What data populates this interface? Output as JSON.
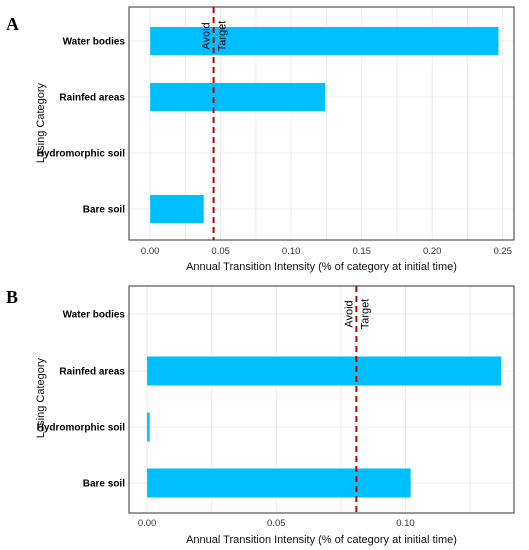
{
  "chart_data": [
    {
      "type": "bar",
      "orientation": "horizontal",
      "panel": "A",
      "categories": [
        "Water bodies",
        "Rainfed areas",
        "Hydromorphic soil",
        "Bare soil"
      ],
      "values": [
        0.247,
        0.124,
        0.0,
        0.038
      ],
      "xlabel": "Annual Transition Intensity (% of category at initial time)",
      "ylabel": "Losing Category",
      "xlim": [
        -0.015,
        0.258
      ],
      "xticks": [
        "0.00",
        "0.05",
        "0.10",
        "0.15",
        "0.20",
        "0.25"
      ],
      "tick_values": [
        0.0,
        0.05,
        0.1,
        0.15,
        0.2,
        0.25
      ],
      "reference_line": {
        "value": 0.045,
        "label_left": "Avoid",
        "label_right": "Target"
      },
      "grid": true,
      "bar_color": "#00bfff",
      "line_color": "#c00000"
    },
    {
      "type": "bar",
      "orientation": "horizontal",
      "panel": "B",
      "categories": [
        "Water bodies",
        "Rainfed areas",
        "Hydromorphic soil",
        "Bare soil"
      ],
      "values": [
        0.0,
        0.137,
        0.001,
        0.102
      ],
      "xlabel": "Annual Transition Intensity (% of category at initial time)",
      "ylabel": "Losing Category",
      "xlim": [
        -0.007,
        0.142
      ],
      "xticks": [
        "0.00",
        "0.05",
        "0.10"
      ],
      "tick_values": [
        0.0,
        0.05,
        0.1
      ],
      "reference_line": {
        "value": 0.081,
        "label_left": "Avoid",
        "label_right": "Target"
      },
      "grid": true,
      "bar_color": "#00bfff",
      "line_color": "#c00000"
    }
  ]
}
